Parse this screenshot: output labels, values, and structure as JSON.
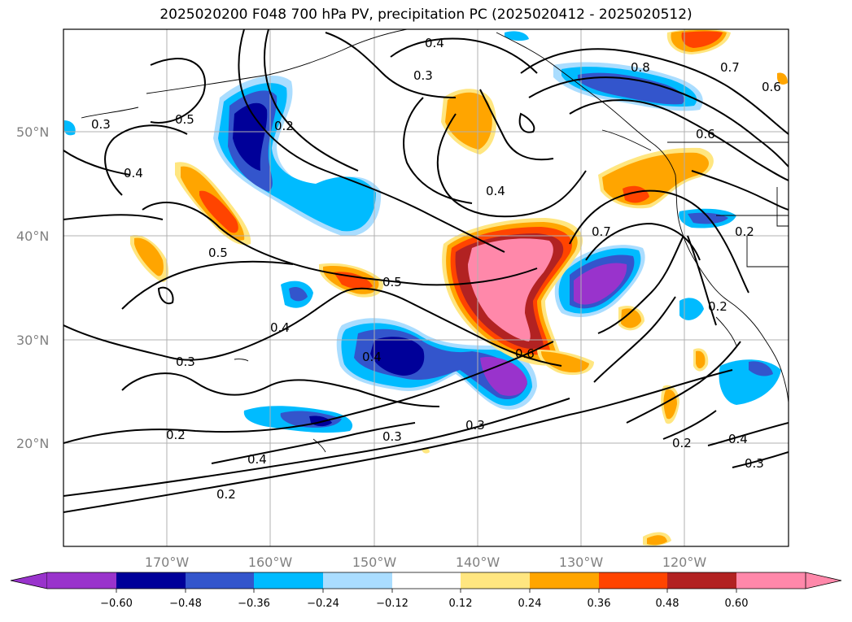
{
  "title": "2025020200 F048 700 hPa PV, precipitation PC (2025020412 - 2025020512)",
  "lat_labels": [
    "50°N",
    "40°N",
    "30°N",
    "20°N"
  ],
  "lon_labels": [
    "170°W",
    "160°W",
    "150°W",
    "140°W",
    "130°W",
    "120°W"
  ],
  "contour_labels": [
    "0.2",
    "0.3",
    "0.4",
    "0.5",
    "0.6",
    "0.7",
    "0.8"
  ],
  "colorbar": {
    "tick_labels": [
      "−0.60",
      "−0.48",
      "−0.36",
      "−0.24",
      "−0.12",
      "0.12",
      "0.24",
      "0.36",
      "0.48",
      "0.60"
    ],
    "colors": [
      "#9933cc",
      "#000099",
      "#3355cc",
      "#00bbff",
      "#aaddff",
      "#ffffff",
      "#ffe680",
      "#ffa500",
      "#ff4400",
      "#b22222",
      "#ff88aa"
    ]
  },
  "colors": {
    "neg_strong": "#9933cc",
    "neg_dark": "#000099",
    "neg_mid": "#3355cc",
    "neg_light": "#00bbff",
    "neg_pale": "#aaddff",
    "pos_pale": "#ffe680",
    "pos_mid": "#ffa500",
    "pos_strong": "#ff4400",
    "pos_dark": "#b22222",
    "pos_extreme": "#ff88aa"
  }
}
